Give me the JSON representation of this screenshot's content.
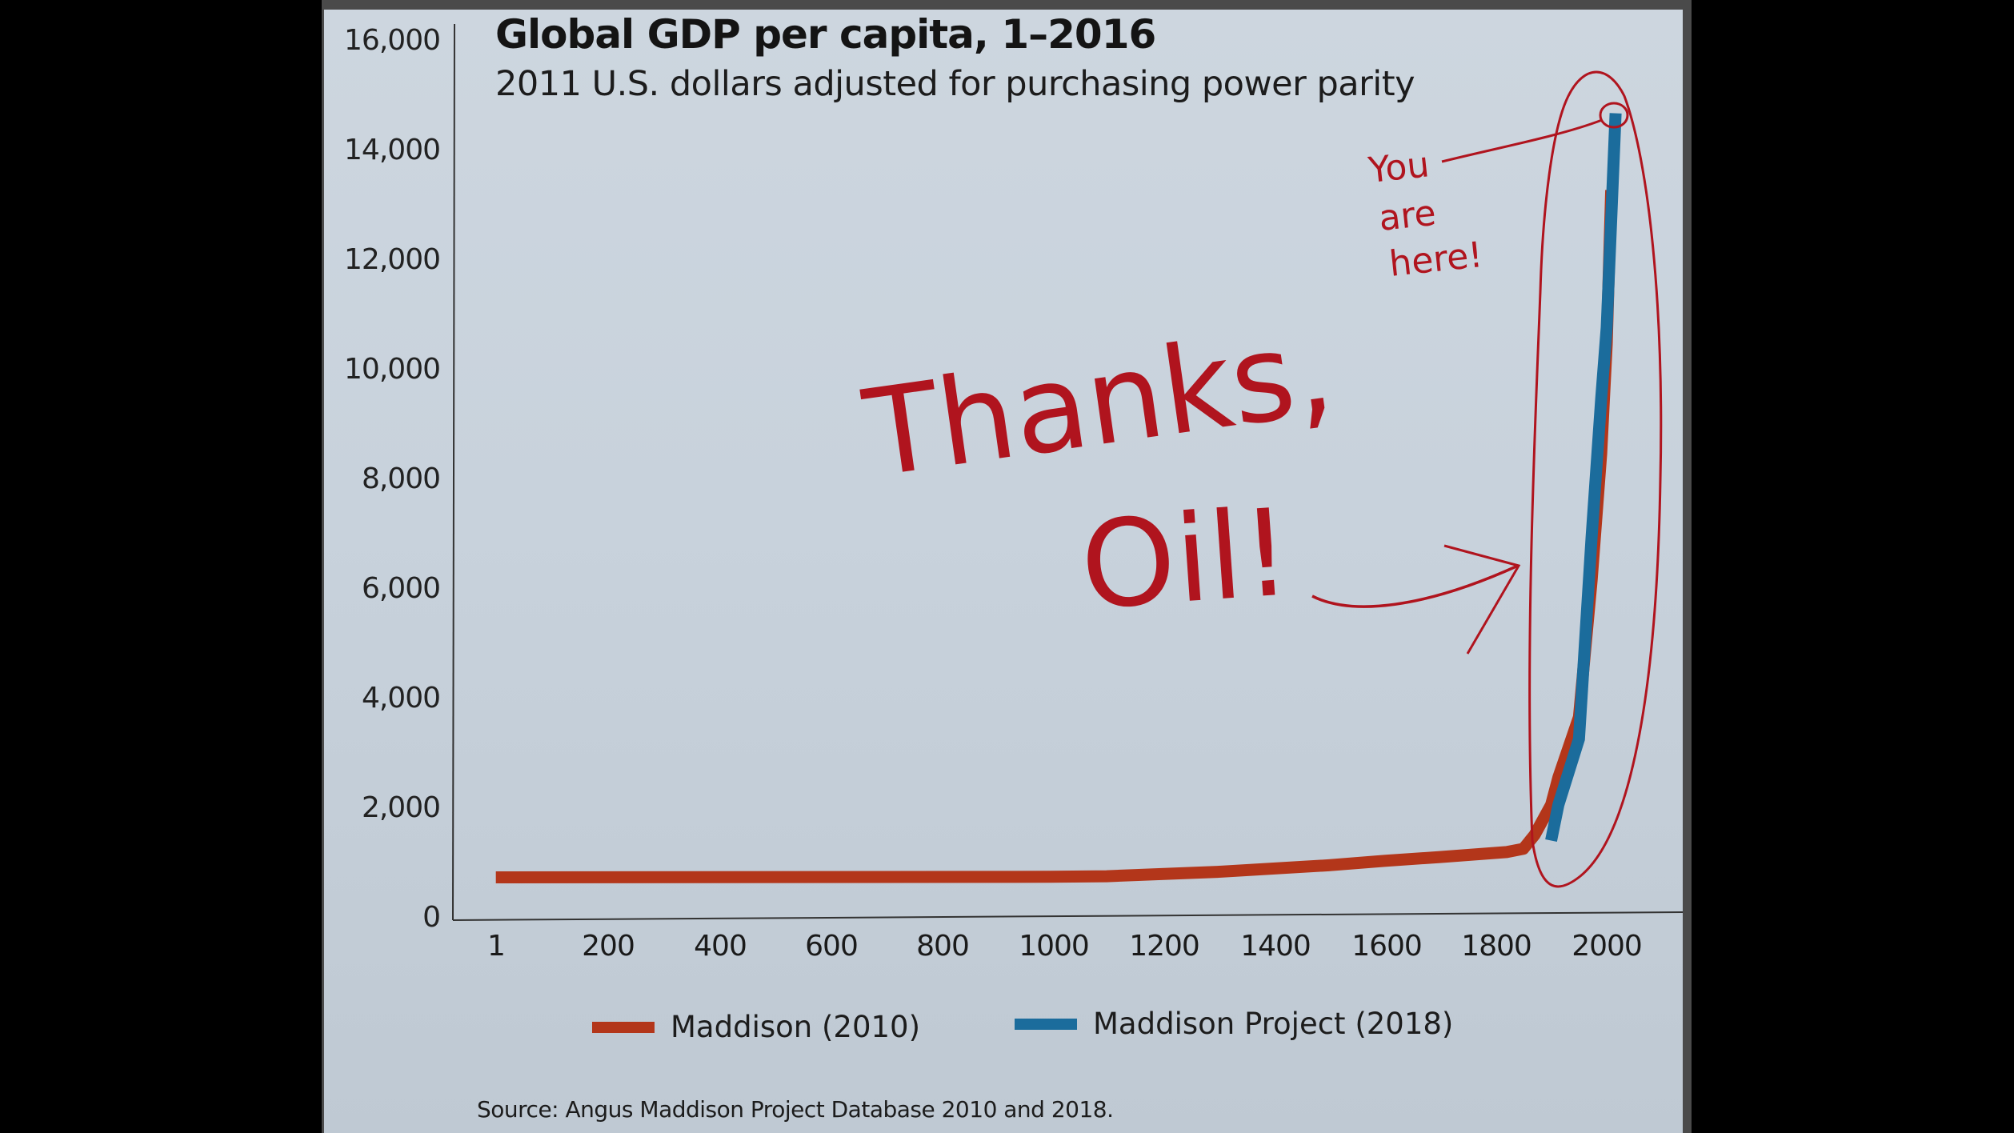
{
  "chart_data": {
    "type": "line",
    "title": "Global GDP per capita, 1–2016",
    "subtitle": "2011 U.S. dollars adjusted for purchasing power parity",
    "xlabel": "",
    "ylabel": "",
    "xlim": [
      1,
      2016
    ],
    "ylim": [
      0,
      16000
    ],
    "x_ticks": [
      "1",
      "200",
      "400",
      "600",
      "800",
      "1000",
      "1200",
      "1400",
      "1600",
      "1800",
      "2000"
    ],
    "y_ticks": [
      "0",
      "2,000",
      "4,000",
      "6,000",
      "8,000",
      "10,000",
      "12,000",
      "14,000",
      "16,000"
    ],
    "grid": false,
    "legend_position": "bottom",
    "series": [
      {
        "name": "Maddison (2010)",
        "color": "#b3361a",
        "x": [
          1,
          1000,
          1100,
          1300,
          1500,
          1600,
          1700,
          1820,
          1850,
          1870,
          1900,
          1913,
          1950,
          1973,
          1990,
          2000,
          2008
        ],
        "values": [
          780,
          790,
          800,
          880,
          1000,
          1080,
          1150,
          1240,
          1300,
          1550,
          2100,
          2600,
          3700,
          6200,
          8500,
          10500,
          13300
        ]
      },
      {
        "name": "Maddison Project (2018)",
        "color": "#1b6c9c",
        "x": [
          1900,
          1913,
          1950,
          1973,
          1990,
          2000,
          2016
        ],
        "values": [
          1450,
          2100,
          3300,
          7000,
          9500,
          10800,
          14700
        ]
      }
    ],
    "annotations": [
      {
        "text": "Thanks, Oil!",
        "type": "handwritten",
        "color": "#b0141e",
        "arrow_to": "modern GDP spike (1870–2016)"
      },
      {
        "text": "You are here!",
        "type": "handwritten",
        "color": "#b0141e",
        "points_to": "2016 endpoint (~14,700)"
      },
      {
        "type": "handwritten-oval",
        "encircles": "post-1870 rise",
        "color": "#b0141e"
      }
    ],
    "source": "Source: Angus Maddison Project Database 2010 and 2018."
  },
  "header": {
    "title": "Global GDP per capita, 1–2016",
    "subtitle": "2011 U.S. dollars adjusted for purchasing power parity"
  },
  "axes": {
    "y_ticks": [
      "16,000",
      "14,000",
      "12,000",
      "10,000",
      "8,000",
      "6,000",
      "4,000",
      "2,000",
      "0"
    ],
    "x_ticks": [
      "1",
      "200",
      "400",
      "600",
      "800",
      "1000",
      "1200",
      "1400",
      "1600",
      "1800",
      "2000"
    ]
  },
  "legend": {
    "items": [
      {
        "label": "Maddison (2010)",
        "color": "#b3361a"
      },
      {
        "label": "Maddison Project (2018)",
        "color": "#1b6c9c"
      }
    ]
  },
  "annotations": {
    "thanks": "Thanks,",
    "oil": "Oil!",
    "you": "You",
    "are": "are",
    "here": "here!"
  },
  "footer": {
    "source": "Source: Angus Maddison Project Database 2010 and 2018."
  }
}
